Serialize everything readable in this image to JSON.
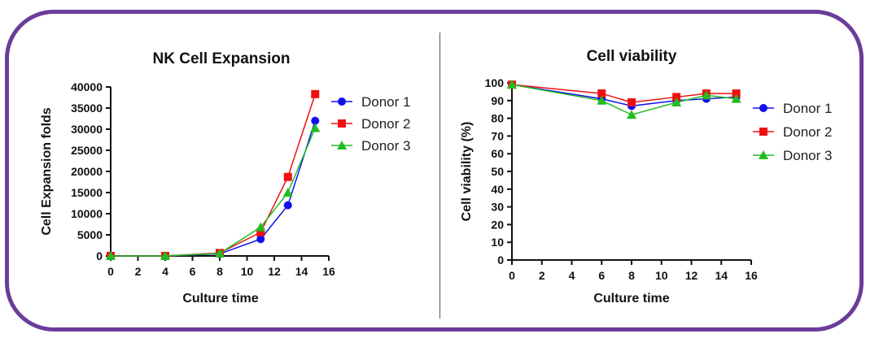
{
  "chart_data": [
    {
      "type": "line",
      "title": "NK Cell Expansion",
      "xlabel": "Culture time",
      "ylabel": "Cell Expansion folds",
      "xlim": [
        0,
        16
      ],
      "ylim": [
        0,
        40000
      ],
      "xticks": [
        0,
        2,
        4,
        6,
        8,
        10,
        12,
        14,
        16
      ],
      "yticks": [
        0,
        5000,
        10000,
        15000,
        20000,
        25000,
        30000,
        35000,
        40000
      ],
      "grid": false,
      "legend_position": "top-right",
      "series": [
        {
          "name": "Donor 1",
          "color": "#1010ee",
          "marker": "circle",
          "x": [
            0,
            4,
            8,
            11,
            13,
            15
          ],
          "values": [
            0,
            0,
            500,
            4000,
            12000,
            32000
          ]
        },
        {
          "name": "Donor 2",
          "color": "#ee1111",
          "marker": "square",
          "x": [
            0,
            4,
            8,
            11,
            13,
            15
          ],
          "values": [
            0,
            0,
            700,
            5600,
            18700,
            38300
          ]
        },
        {
          "name": "Donor 3",
          "color": "#22bb22",
          "marker": "triangle",
          "x": [
            0,
            4,
            8,
            11,
            13,
            15
          ],
          "values": [
            0,
            0,
            600,
            6800,
            15000,
            30300
          ]
        }
      ]
    },
    {
      "type": "line",
      "title": "Cell viability",
      "xlabel": "Culture time",
      "ylabel": "Cell viability (%)",
      "xlim": [
        0,
        16
      ],
      "ylim": [
        0,
        100
      ],
      "xticks": [
        0,
        2,
        4,
        6,
        8,
        10,
        12,
        14,
        16
      ],
      "yticks": [
        0,
        10,
        20,
        30,
        40,
        50,
        60,
        70,
        80,
        90,
        100
      ],
      "grid": false,
      "legend_position": "right",
      "series": [
        {
          "name": "Donor 1",
          "color": "#1010ee",
          "marker": "circle",
          "x": [
            0,
            6,
            8,
            11,
            13,
            15
          ],
          "values": [
            99,
            91,
            87,
            90,
            91,
            92
          ]
        },
        {
          "name": "Donor 2",
          "color": "#ee1111",
          "marker": "square",
          "x": [
            0,
            6,
            8,
            11,
            13,
            15
          ],
          "values": [
            99,
            94,
            89,
            92,
            94,
            94
          ]
        },
        {
          "name": "Donor 3",
          "color": "#22bb22",
          "marker": "triangle",
          "x": [
            0,
            6,
            8,
            11,
            13,
            15
          ],
          "values": [
            99,
            90,
            82,
            89,
            93,
            91
          ]
        }
      ]
    }
  ]
}
